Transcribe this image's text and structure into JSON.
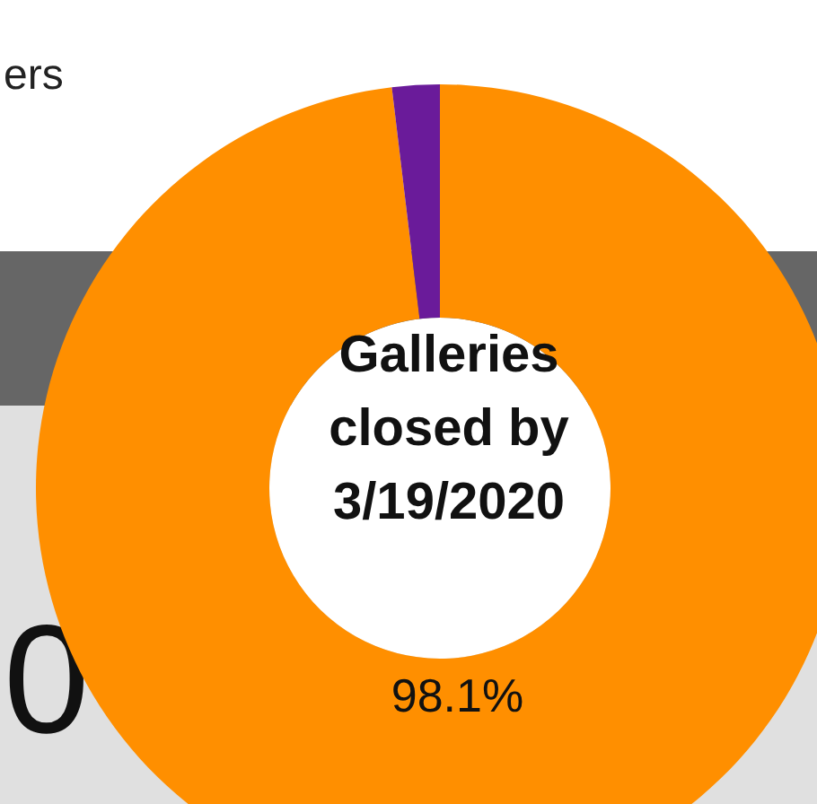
{
  "chart_data": {
    "type": "donut",
    "title": "Galleries\nclosed by\n3/19/2020",
    "categories": [
      null,
      null
    ],
    "values": [
      98.1,
      1.9
    ],
    "colors": [
      "#ff8f00",
      "#6a1b9a"
    ],
    "value_labels": [
      "98.1%",
      null
    ],
    "annotations": [
      "ers",
      "0"
    ]
  }
}
